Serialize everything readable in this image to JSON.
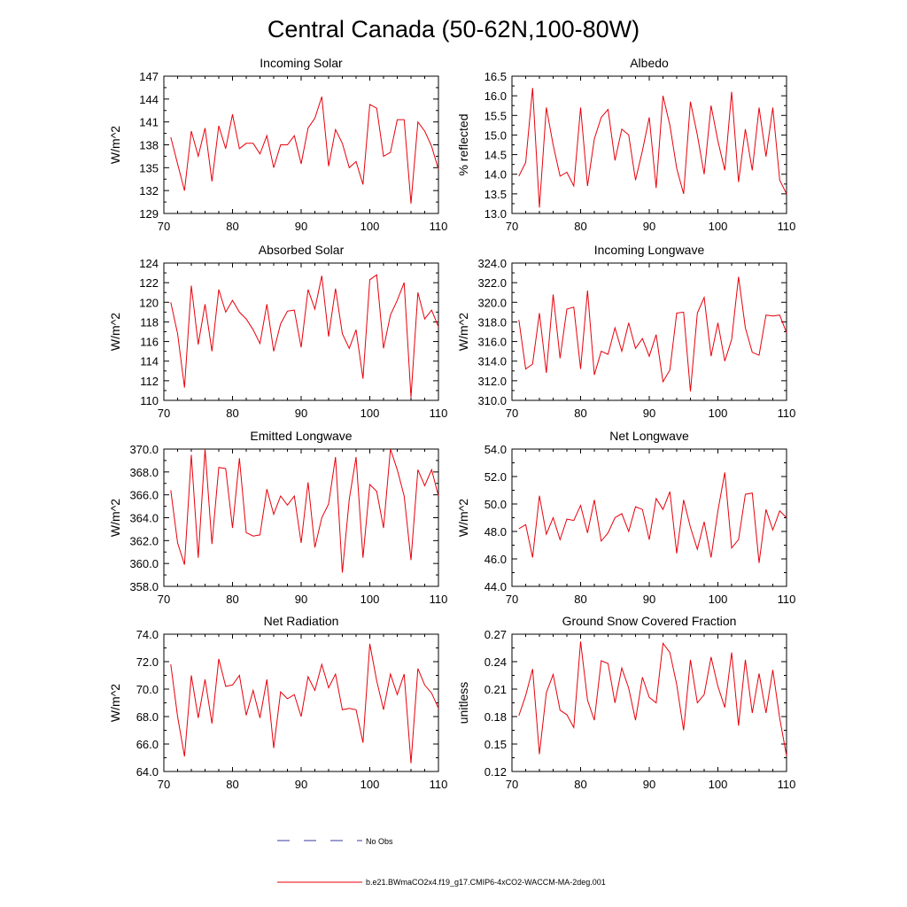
{
  "figure": {
    "title": "Central Canada (50-62N,100-80W)"
  },
  "legend": {
    "no_obs_label": "No Obs",
    "model_label": "b.e21.BWmaCO2x4.f19_g17.CMIP6-4xCO2-WACCM-MA-2deg.001",
    "no_obs_color": "#3a3aa0",
    "model_color": "#e8000b"
  },
  "chart_data": [
    {
      "type": "line",
      "title": "Incoming Solar",
      "xlabel": "",
      "ylabel": "W/m^2",
      "xlim": [
        70,
        110
      ],
      "ylim": [
        129,
        147
      ],
      "xticks": [
        70,
        80,
        90,
        100,
        110
      ],
      "yticks": [
        "129",
        "132",
        "135",
        "138",
        "141",
        "144",
        "147"
      ],
      "x": [
        71,
        72,
        73,
        74,
        75,
        76,
        77,
        78,
        79,
        80,
        81,
        82,
        83,
        84,
        85,
        86,
        87,
        88,
        89,
        90,
        91,
        92,
        93,
        94,
        95,
        96,
        97,
        98,
        99,
        100,
        101,
        102,
        103,
        104,
        105,
        106,
        107,
        108,
        109,
        110
      ],
      "series": [
        {
          "name": "b.e21.BWmaCO2x4.f19_g17.CMIP6-4xCO2-WACCM-MA-2deg.001",
          "values": [
            139,
            135.5,
            132,
            139.8,
            136.5,
            140.2,
            133.2,
            140.5,
            137.5,
            142,
            137.5,
            138.2,
            138.2,
            136.8,
            139.2,
            135,
            138,
            138,
            139.2,
            135.5,
            140.2,
            141.5,
            144.3,
            135.2,
            140,
            138.2,
            135,
            135.8,
            132.8,
            143.3,
            142.8,
            136.5,
            137,
            141.3,
            141.3,
            130.3,
            141,
            139.8,
            137.8,
            134.8
          ]
        }
      ]
    },
    {
      "type": "line",
      "title": "Albedo",
      "xlabel": "",
      "ylabel": "% reflected",
      "xlim": [
        70,
        110
      ],
      "ylim": [
        13.0,
        16.5
      ],
      "xticks": [
        70,
        80,
        90,
        100,
        110
      ],
      "yticks": [
        "13.0",
        "13.5",
        "14.0",
        "14.5",
        "15.0",
        "15.5",
        "16.0",
        "16.5"
      ],
      "x": [
        71,
        72,
        73,
        74,
        75,
        76,
        77,
        78,
        79,
        80,
        81,
        82,
        83,
        84,
        85,
        86,
        87,
        88,
        89,
        90,
        91,
        92,
        93,
        94,
        95,
        96,
        97,
        98,
        99,
        100,
        101,
        102,
        103,
        104,
        105,
        106,
        107,
        108,
        109,
        110
      ],
      "series": [
        {
          "name": "b.e21.BWmaCO2x4.f19_g17.CMIP6-4xCO2-WACCM-MA-2deg.001",
          "values": [
            13.95,
            14.3,
            16.2,
            13.15,
            15.7,
            14.75,
            13.95,
            14.05,
            13.7,
            15.7,
            13.7,
            14.9,
            15.45,
            15.65,
            14.35,
            15.15,
            15.0,
            13.85,
            14.6,
            15.45,
            13.65,
            16.0,
            15.25,
            14.15,
            13.5,
            15.85,
            15.0,
            14.0,
            15.75,
            14.85,
            14.1,
            16.1,
            13.8,
            15.15,
            14.1,
            15.7,
            14.45,
            15.7,
            13.85,
            13.5
          ]
        }
      ]
    },
    {
      "type": "line",
      "title": "Absorbed Solar",
      "xlabel": "",
      "ylabel": "W/m^2",
      "xlim": [
        70,
        110
      ],
      "ylim": [
        110,
        124
      ],
      "xticks": [
        70,
        80,
        90,
        100,
        110
      ],
      "yticks": [
        "110",
        "112",
        "114",
        "116",
        "118",
        "120",
        "122",
        "124"
      ],
      "x": [
        71,
        72,
        73,
        74,
        75,
        76,
        77,
        78,
        79,
        80,
        81,
        82,
        83,
        84,
        85,
        86,
        87,
        88,
        89,
        90,
        91,
        92,
        93,
        94,
        95,
        96,
        97,
        98,
        99,
        100,
        101,
        102,
        103,
        104,
        105,
        106,
        107,
        108,
        109,
        110
      ],
      "series": [
        {
          "name": "b.e21.BWmaCO2x4.f19_g17.CMIP6-4xCO2-WACCM-MA-2deg.001",
          "values": [
            120,
            116.8,
            111.3,
            121.7,
            115.7,
            119.8,
            115,
            121.3,
            119,
            120.2,
            119,
            118.3,
            117.2,
            115.8,
            119.8,
            115,
            117.8,
            119.1,
            119.2,
            115.4,
            121.3,
            119.3,
            122.7,
            116.5,
            121.4,
            116.8,
            115.3,
            117.2,
            112.2,
            122.3,
            122.8,
            115.3,
            118.7,
            120.2,
            122,
            110.3,
            121,
            118.3,
            119.2,
            117.5
          ]
        }
      ]
    },
    {
      "type": "line",
      "title": "Incoming Longwave",
      "xlabel": "",
      "ylabel": "W/m^2",
      "xlim": [
        70,
        110
      ],
      "ylim": [
        310.0,
        324.0
      ],
      "xticks": [
        70,
        80,
        90,
        100,
        110
      ],
      "yticks": [
        "310.0",
        "312.0",
        "314.0",
        "316.0",
        "318.0",
        "320.0",
        "322.0",
        "324.0"
      ],
      "x": [
        71,
        72,
        73,
        74,
        75,
        76,
        77,
        78,
        79,
        80,
        81,
        82,
        83,
        84,
        85,
        86,
        87,
        88,
        89,
        90,
        91,
        92,
        93,
        94,
        95,
        96,
        97,
        98,
        99,
        100,
        101,
        102,
        103,
        104,
        105,
        106,
        107,
        108,
        109,
        110
      ],
      "series": [
        {
          "name": "b.e21.BWmaCO2x4.f19_g17.CMIP6-4xCO2-WACCM-MA-2deg.001",
          "values": [
            318.2,
            313.2,
            313.7,
            318.9,
            312.8,
            320.8,
            314.3,
            319.3,
            319.5,
            313.2,
            321.2,
            312.6,
            315,
            314.7,
            317.4,
            315,
            317.9,
            315.3,
            316.3,
            314.5,
            316.7,
            311.9,
            313.1,
            318.9,
            319,
            310.9,
            318.9,
            320.5,
            314.5,
            317.9,
            314,
            316.2,
            322.6,
            317.4,
            314.9,
            314.6,
            318.7,
            318.6,
            318.7,
            316.9
          ]
        }
      ]
    },
    {
      "type": "line",
      "title": "Emitted Longwave",
      "xlabel": "",
      "ylabel": "W/m^2",
      "xlim": [
        70,
        110
      ],
      "ylim": [
        358.0,
        370.0
      ],
      "xticks": [
        70,
        80,
        90,
        100,
        110
      ],
      "yticks": [
        "358.0",
        "360.0",
        "362.0",
        "364.0",
        "366.0",
        "368.0",
        "370.0"
      ],
      "x": [
        71,
        72,
        73,
        74,
        75,
        76,
        77,
        78,
        79,
        80,
        81,
        82,
        83,
        84,
        85,
        86,
        87,
        88,
        89,
        90,
        91,
        92,
        93,
        94,
        95,
        96,
        97,
        98,
        99,
        100,
        101,
        102,
        103,
        104,
        105,
        106,
        107,
        108,
        109,
        110
      ],
      "series": [
        {
          "name": "b.e21.BWmaCO2x4.f19_g17.CMIP6-4xCO2-WACCM-MA-2deg.001",
          "values": [
            366.4,
            361.8,
            359.9,
            369.5,
            360.5,
            370,
            361.7,
            368.4,
            368.3,
            363.1,
            369.2,
            362.7,
            362.4,
            362.5,
            366.5,
            364.3,
            365.9,
            365.1,
            365.9,
            361.8,
            367.1,
            361.4,
            364,
            365.2,
            369.3,
            359.2,
            365.6,
            369.3,
            360.5,
            366.9,
            366.3,
            363.1,
            370,
            368.2,
            365.9,
            360.3,
            368.2,
            366.8,
            368.2,
            365.9
          ]
        }
      ]
    },
    {
      "type": "line",
      "title": "Net Longwave",
      "xlabel": "",
      "ylabel": "W/m^2",
      "xlim": [
        70,
        110
      ],
      "ylim": [
        44.0,
        54.0
      ],
      "xticks": [
        70,
        80,
        90,
        100,
        110
      ],
      "yticks": [
        "44.0",
        "46.0",
        "48.0",
        "50.0",
        "52.0",
        "54.0"
      ],
      "x": [
        71,
        72,
        73,
        74,
        75,
        76,
        77,
        78,
        79,
        80,
        81,
        82,
        83,
        84,
        85,
        86,
        87,
        88,
        89,
        90,
        91,
        92,
        93,
        94,
        95,
        96,
        97,
        98,
        99,
        100,
        101,
        102,
        103,
        104,
        105,
        106,
        107,
        108,
        109,
        110
      ],
      "series": [
        {
          "name": "b.e21.BWmaCO2x4.f19_g17.CMIP6-4xCO2-WACCM-MA-2deg.001",
          "values": [
            48.2,
            48.5,
            46.1,
            50.6,
            47.8,
            49,
            47.4,
            48.9,
            48.8,
            49.9,
            47.9,
            50.3,
            47.3,
            47.9,
            49,
            49.3,
            48,
            49.8,
            49.6,
            47.4,
            50.4,
            49.6,
            50.9,
            46.4,
            50.3,
            48.3,
            46.7,
            48.7,
            46.1,
            49.5,
            52.3,
            46.8,
            47.4,
            50.7,
            50.8,
            45.7,
            49.6,
            48.1,
            49.5,
            49
          ]
        }
      ]
    },
    {
      "type": "line",
      "title": "Net Radiation",
      "xlabel": "",
      "ylabel": "W/m^2",
      "xlim": [
        70,
        110
      ],
      "ylim": [
        64.0,
        74.0
      ],
      "xticks": [
        70,
        80,
        90,
        100,
        110
      ],
      "yticks": [
        "64.0",
        "66.0",
        "68.0",
        "70.0",
        "72.0",
        "74.0"
      ],
      "x": [
        71,
        72,
        73,
        74,
        75,
        76,
        77,
        78,
        79,
        80,
        81,
        82,
        83,
        84,
        85,
        86,
        87,
        88,
        89,
        90,
        91,
        92,
        93,
        94,
        95,
        96,
        97,
        98,
        99,
        100,
        101,
        102,
        103,
        104,
        105,
        106,
        107,
        108,
        109,
        110
      ],
      "series": [
        {
          "name": "b.e21.BWmaCO2x4.f19_g17.CMIP6-4xCO2-WACCM-MA-2deg.001",
          "values": [
            71.8,
            68,
            65.1,
            71,
            67.9,
            70.7,
            67.5,
            72.2,
            70.2,
            70.3,
            71,
            68.1,
            69.9,
            67.9,
            70.7,
            65.7,
            69.8,
            69.3,
            69.6,
            68,
            70.9,
            69.9,
            71.8,
            70.1,
            71.1,
            68.5,
            68.6,
            68.5,
            66.1,
            73.3,
            70.6,
            68.5,
            71.1,
            69.6,
            71.1,
            64.6,
            71.5,
            70.3,
            69.7,
            68.6
          ]
        }
      ]
    },
    {
      "type": "line",
      "title": "Ground Snow Covered Fraction",
      "xlabel": "",
      "ylabel": "unitless",
      "xlim": [
        70,
        110
      ],
      "ylim": [
        0.12,
        0.27
      ],
      "xticks": [
        70,
        80,
        90,
        100,
        110
      ],
      "yticks": [
        "0.12",
        "0.15",
        "0.18",
        "0.21",
        "0.24",
        "0.27"
      ],
      "x": [
        71,
        72,
        73,
        74,
        75,
        76,
        77,
        78,
        79,
        80,
        81,
        82,
        83,
        84,
        85,
        86,
        87,
        88,
        89,
        90,
        91,
        92,
        93,
        94,
        95,
        96,
        97,
        98,
        99,
        100,
        101,
        102,
        103,
        104,
        105,
        106,
        107,
        108,
        109,
        110
      ],
      "series": [
        {
          "name": "b.e21.BWmaCO2x4.f19_g17.CMIP6-4xCO2-WACCM-MA-2deg.001",
          "values": [
            0.181,
            0.203,
            0.232,
            0.139,
            0.206,
            0.226,
            0.187,
            0.182,
            0.168,
            0.262,
            0.198,
            0.176,
            0.241,
            0.238,
            0.195,
            0.233,
            0.211,
            0.176,
            0.223,
            0.201,
            0.195,
            0.26,
            0.25,
            0.215,
            0.165,
            0.242,
            0.195,
            0.204,
            0.245,
            0.213,
            0.19,
            0.25,
            0.17,
            0.242,
            0.184,
            0.227,
            0.184,
            0.231,
            0.178,
            0.137
          ]
        }
      ]
    }
  ]
}
